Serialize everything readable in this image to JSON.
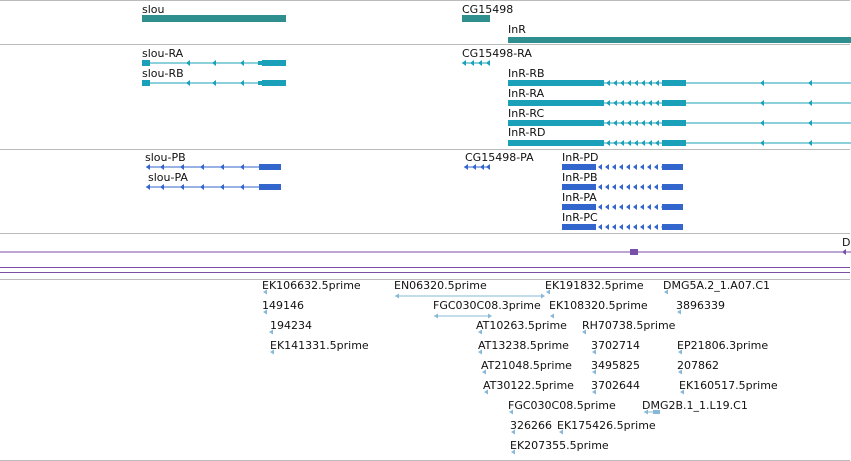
{
  "colors": {
    "gene": "#2f8f8f",
    "transcript": "#1aa0b8",
    "protein": "#3366cc",
    "purple": "#7a4fa8",
    "est": "#87b8d8",
    "divider": "#bbbbbb"
  },
  "tracks": {
    "genes": {
      "items": [
        {
          "id": "gene-slou",
          "label": "slou"
        },
        {
          "id": "gene-cg15498",
          "label": "CG15498"
        },
        {
          "id": "gene-inr",
          "label": "InR"
        }
      ]
    },
    "transcripts": {
      "items": [
        {
          "id": "tx-slou-ra",
          "label": "slou-RA"
        },
        {
          "id": "tx-slou-rb",
          "label": "slou-RB"
        },
        {
          "id": "tx-cg15498-ra",
          "label": "CG15498-RA"
        },
        {
          "id": "tx-inr-rb",
          "label": "InR-RB"
        },
        {
          "id": "tx-inr-ra",
          "label": "InR-RA"
        },
        {
          "id": "tx-inr-rc",
          "label": "InR-RC"
        },
        {
          "id": "tx-inr-rd",
          "label": "InR-RD"
        }
      ]
    },
    "proteins": {
      "items": [
        {
          "id": "pp-slou-pb",
          "label": "slou-PB"
        },
        {
          "id": "pp-slou-pa",
          "label": "slou-PA"
        },
        {
          "id": "pp-cg15498-pa",
          "label": "CG15498-PA"
        },
        {
          "id": "pp-inr-pd",
          "label": "InR-PD"
        },
        {
          "id": "pp-inr-pb",
          "label": "InR-PB"
        },
        {
          "id": "pp-inr-pa",
          "label": "InR-PA"
        },
        {
          "id": "pp-inr-pc",
          "label": "InR-PC"
        }
      ]
    },
    "other": {
      "items": [
        {
          "id": "other-d",
          "label": "D"
        }
      ]
    },
    "ests": {
      "items": [
        {
          "id": "est-1",
          "label": "EK106632.5prime"
        },
        {
          "id": "est-2",
          "label": "149146"
        },
        {
          "id": "est-3",
          "label": "194234"
        },
        {
          "id": "est-4",
          "label": "EK141331.5prime"
        },
        {
          "id": "est-5",
          "label": "EN06320.5prime"
        },
        {
          "id": "est-6",
          "label": "FGC030C08.3prime"
        },
        {
          "id": "est-7",
          "label": "EK191832.5prime"
        },
        {
          "id": "est-8",
          "label": "EK108320.5prime"
        },
        {
          "id": "est-9",
          "label": "AT10263.5prime"
        },
        {
          "id": "est-10",
          "label": "RH70738.5prime"
        },
        {
          "id": "est-11",
          "label": "AT13238.5prime"
        },
        {
          "id": "est-12",
          "label": "3702714"
        },
        {
          "id": "est-13",
          "label": "AT21048.5prime"
        },
        {
          "id": "est-14",
          "label": "3495825"
        },
        {
          "id": "est-15",
          "label": "AT30122.5prime"
        },
        {
          "id": "est-16",
          "label": "3702644"
        },
        {
          "id": "est-17",
          "label": "FGC030C08.5prime"
        },
        {
          "id": "est-18",
          "label": "326266"
        },
        {
          "id": "est-19",
          "label": "EK175426.5prime"
        },
        {
          "id": "est-20",
          "label": "EK207355.5prime"
        },
        {
          "id": "est-21",
          "label": "DMG5A.2_1.A07.C1"
        },
        {
          "id": "est-22",
          "label": "3896339"
        },
        {
          "id": "est-23",
          "label": "EP21806.3prime"
        },
        {
          "id": "est-24",
          "label": "207862"
        },
        {
          "id": "est-25",
          "label": "EK160517.5prime"
        },
        {
          "id": "est-26",
          "label": "DMG2B.1_1.L19.C1"
        }
      ]
    }
  }
}
